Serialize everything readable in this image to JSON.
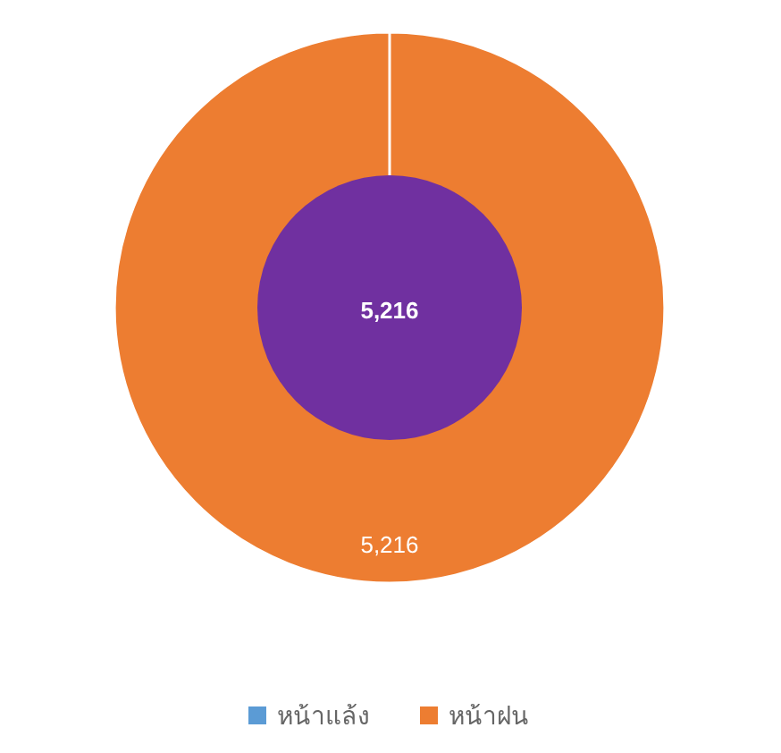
{
  "chart_data": {
    "type": "donut",
    "categories": [
      "หน้าแล้ง",
      "หน้าฝน"
    ],
    "values": [
      0,
      5216
    ],
    "colors": [
      "#5b9bd5",
      "#ed7d31"
    ],
    "value_labels": [
      null,
      "5,216"
    ],
    "annotations": [
      "5,216"
    ],
    "legend": "bottom"
  }
}
